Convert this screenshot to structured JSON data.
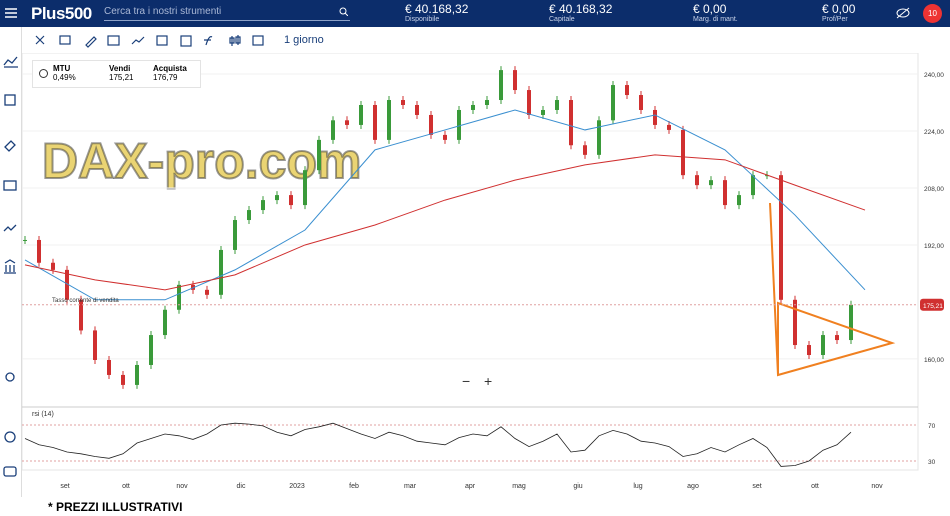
{
  "header": {
    "logo": "Plus500",
    "search_placeholder": "Cerca tra i nostri strumenti",
    "accounts": [
      {
        "value": "€ 40.168,32",
        "label": "Disponibile"
      },
      {
        "value": "€ 40.168,32",
        "label": "Capitale"
      },
      {
        "value": "€ 0,00",
        "label": "Marg. di mant."
      },
      {
        "value": "€ 0,00",
        "label": "Prof/Per"
      }
    ],
    "notifications": "10"
  },
  "toolbar": {
    "timeframe": "1 giorno"
  },
  "instrument": {
    "symbol": "MTU",
    "change": "0,49%",
    "sell_label": "Vendi",
    "sell": "175,21",
    "buy_label": "Acquista",
    "buy": "176,79"
  },
  "watermark": "DAX-pro.com",
  "chart": {
    "sell_rate_label": "Tasso corrente di vendita",
    "last_price": {
      "value": 175.21,
      "label": "175,21"
    },
    "ylim": [
      146.5,
      245.9
    ],
    "yticks": [
      {
        "value": 240,
        "label": "240,00"
      },
      {
        "value": 224,
        "label": "224,00"
      },
      {
        "value": 208,
        "label": "208,00"
      },
      {
        "value": 192,
        "label": "192,00"
      },
      {
        "value": 160,
        "label": "160,00"
      }
    ],
    "closes": [
      193.4,
      187,
      185,
      176.6,
      168,
      159.7,
      155.5,
      152.7,
      158.3,
      166.7,
      173.8,
      180.8,
      179.4,
      178,
      190.6,
      199,
      201.8,
      204.6,
      206,
      203.2,
      213,
      221.5,
      227,
      225.7,
      231.3,
      221.5,
      232.7,
      231.3,
      228.5,
      222.9,
      221.5,
      229.9,
      231.3,
      232.7,
      241.1,
      235.5,
      228.5,
      229.9,
      232.7,
      220,
      217.3,
      227,
      236.9,
      234.1,
      229.9,
      225.7,
      224.3,
      211.6,
      208.8,
      210.2,
      203.2,
      206,
      211.6,
      211.6,
      176.6,
      163.9,
      161.1,
      166.7,
      165.3,
      175.2
    ],
    "ma_fast": [
      187.8,
      176.6,
      176.6,
      185,
      196.2,
      218.7,
      224.3,
      229.9,
      224.3,
      228.5,
      218.7,
      200.4,
      179.4
    ],
    "ma_slow": [
      186.4,
      182.2,
      179.4,
      183.6,
      192,
      197.6,
      204.6,
      210.2,
      214.5,
      217.3,
      215.9,
      208.8,
      201.8
    ],
    "months": [
      "set",
      "ott",
      "nov",
      "dic",
      "2023",
      "feb",
      "mar",
      "apr",
      "mag",
      "giu",
      "lug",
      "ago",
      "set",
      "ott",
      "nov"
    ]
  },
  "rsi": {
    "label": "rsi (14)",
    "ylim": [
      20,
      90
    ],
    "yticks": [
      70,
      30
    ],
    "values": [
      55,
      48,
      45,
      40,
      38,
      35,
      33,
      38,
      50,
      55,
      60,
      58,
      54,
      60,
      70,
      72,
      71,
      69,
      62,
      58,
      65,
      68,
      72,
      66,
      60,
      55,
      62,
      58,
      52,
      50,
      48,
      56,
      60,
      58,
      68,
      55,
      46,
      52,
      60,
      40,
      42,
      58,
      64,
      60,
      52,
      50,
      46,
      35,
      38,
      45,
      40,
      48,
      55,
      45,
      24,
      25,
      30,
      42,
      48,
      62
    ]
  },
  "footer": "* PREZZI ILLUSTRATIVI"
}
